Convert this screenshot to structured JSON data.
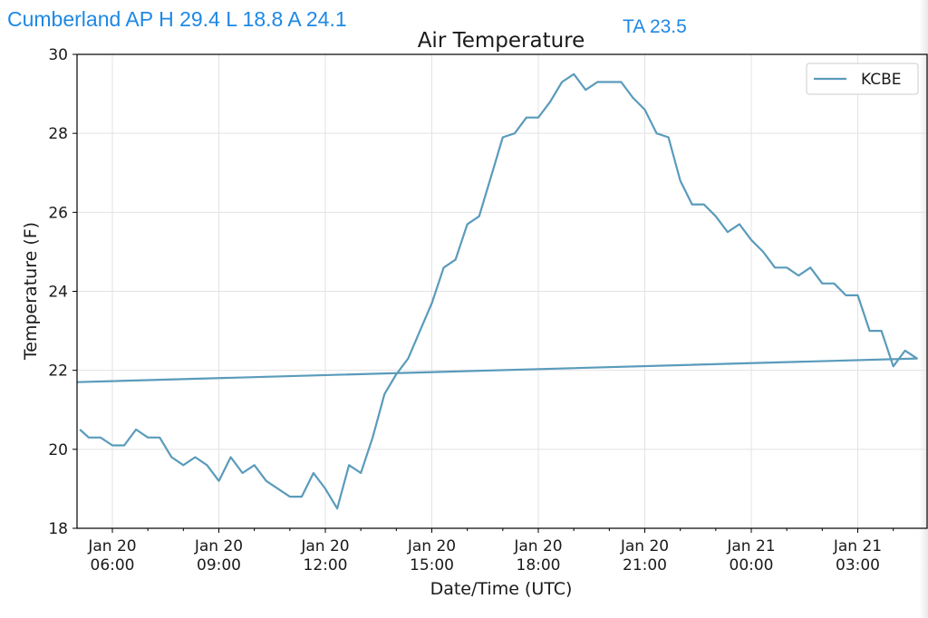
{
  "header": {
    "station_summary": "Cumberland AP H 29.4 L 18.8 A 24.1",
    "ta_readout": "TA 23.5"
  },
  "chart_data": {
    "type": "line",
    "title": "Air Temperature",
    "xlabel": "Date/Time (UTC)",
    "ylabel": "Temperature (F)",
    "ylim": [
      18,
      30
    ],
    "y_ticks": [
      18,
      20,
      22,
      24,
      26,
      28,
      30
    ],
    "x_ticks": [
      {
        "time": "06:00",
        "label_top": "Jan 20",
        "label_bottom": "06:00"
      },
      {
        "time": "09:00",
        "label_top": "Jan 20",
        "label_bottom": "09:00"
      },
      {
        "time": "12:00",
        "label_top": "Jan 20",
        "label_bottom": "12:00"
      },
      {
        "time": "15:00",
        "label_top": "Jan 20",
        "label_bottom": "15:00"
      },
      {
        "time": "18:00",
        "label_top": "Jan 20",
        "label_bottom": "18:00"
      },
      {
        "time": "21:00",
        "label_top": "Jan 20",
        "label_bottom": "21:00"
      },
      {
        "time": "00:00",
        "label_top": "Jan 21",
        "label_bottom": "00:00"
      },
      {
        "time": "03:00",
        "label_top": "Jan 21",
        "label_bottom": "03:00"
      }
    ],
    "grid": true,
    "legend_position": "top-right",
    "series": [
      {
        "name": "KCBE",
        "color": "#5a9bbb",
        "x": [
          "05:05",
          "05:20",
          "05:40",
          "06:00",
          "06:20",
          "06:40",
          "07:00",
          "07:20",
          "07:40",
          "08:00",
          "08:20",
          "08:40",
          "09:00",
          "09:20",
          "09:40",
          "10:00",
          "10:20",
          "10:40",
          "11:00",
          "11:20",
          "11:40",
          "12:00",
          "12:20",
          "12:40",
          "13:00",
          "13:20",
          "13:40",
          "14:00",
          "14:20",
          "14:40",
          "15:00",
          "15:20",
          "15:40",
          "16:00",
          "16:20",
          "16:40",
          "17:00",
          "17:20",
          "17:40",
          "18:00",
          "18:20",
          "18:40",
          "19:00",
          "19:20",
          "19:40",
          "20:00",
          "20:20",
          "20:40",
          "21:00",
          "21:20",
          "21:40",
          "22:00",
          "22:20",
          "22:40",
          "23:00",
          "23:20",
          "23:40",
          "00:00",
          "00:20",
          "00:40",
          "01:00",
          "01:20",
          "01:40",
          "02:00",
          "02:20",
          "02:40",
          "03:00",
          "03:20",
          "03:40",
          "04:00",
          "04:20",
          "04:40",
          "05:00"
        ],
        "values": [
          20.5,
          20.3,
          20.3,
          20.1,
          20.1,
          20.5,
          20.3,
          20.3,
          19.8,
          19.6,
          19.8,
          19.6,
          19.2,
          19.8,
          19.4,
          19.6,
          19.2,
          19.0,
          18.8,
          18.8,
          19.4,
          19.0,
          18.5,
          19.6,
          19.4,
          20.3,
          21.4,
          21.9,
          22.3,
          23.0,
          23.7,
          24.6,
          24.8,
          25.7,
          25.9,
          26.9,
          27.9,
          28.0,
          28.4,
          28.4,
          28.8,
          29.3,
          29.5,
          29.1,
          29.3,
          29.3,
          29.3,
          28.9,
          28.6,
          28.0,
          27.9,
          26.8,
          26.2,
          26.2,
          25.9,
          25.5,
          25.7,
          25.3,
          25.0,
          24.6,
          24.6,
          24.4,
          24.6,
          24.2,
          24.2,
          23.9,
          23.9,
          23.0,
          23.0,
          22.1,
          22.5,
          22.3,
          21.7
        ]
      }
    ]
  }
}
